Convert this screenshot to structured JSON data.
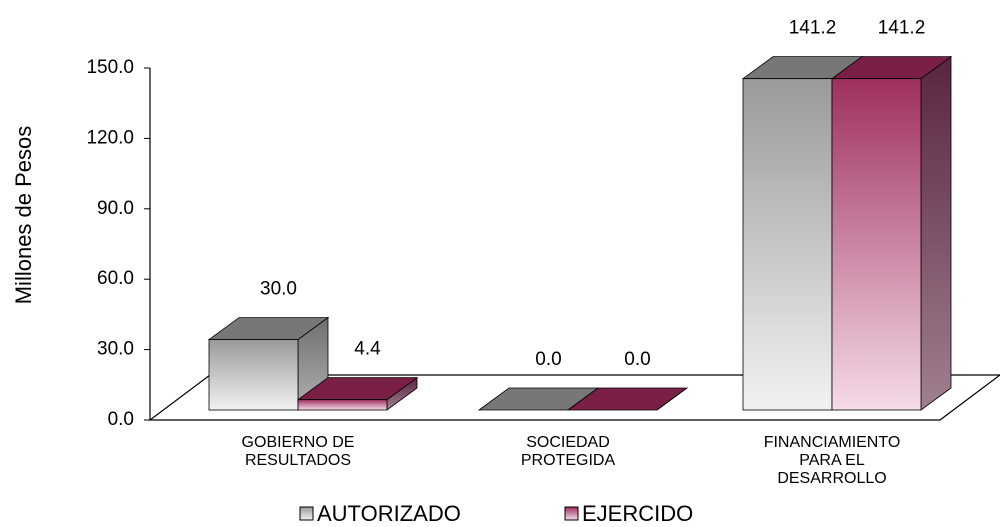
{
  "chart_data": {
    "type": "bar",
    "y_label": "Millones de Pesos",
    "categories": [
      "GOBIERNO DE RESULTADOS",
      "SOCIEDAD PROTEGIDA",
      "FINANCIAMIENTO PARA EL DESARROLLO"
    ],
    "series": [
      {
        "name": "AUTORIZADO",
        "color": "#999999",
        "values": [
          30.0,
          0.0,
          141.2
        ],
        "value_labels": [
          "30.0",
          "0.0",
          "141.2"
        ]
      },
      {
        "name": "EJERCIDO",
        "color": "#9e2f5f",
        "values": [
          4.4,
          0.0,
          141.2
        ],
        "value_labels": [
          "4.4",
          "0.0",
          "141.2"
        ]
      }
    ],
    "ylim": [
      0,
      150
    ],
    "yticks": [
      {
        "value": 0,
        "label": "0.0"
      },
      {
        "value": 30,
        "label": "30.0"
      },
      {
        "value": 60,
        "label": "60.0"
      },
      {
        "value": 90,
        "label": "90.0"
      },
      {
        "value": 120,
        "label": "120.0"
      },
      {
        "value": 150,
        "label": "150.0"
      }
    ]
  }
}
